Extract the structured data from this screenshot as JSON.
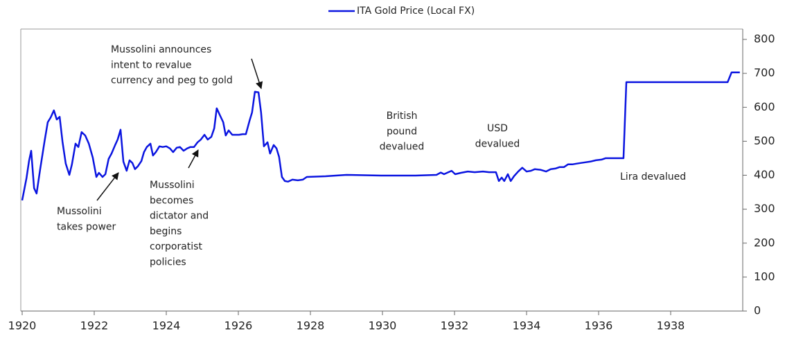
{
  "chart_data": {
    "type": "line",
    "series": [
      {
        "name": "ITA Gold Price (Local FX)",
        "color": "#0a14e0",
        "x": [
          1920.0,
          1920.12,
          1920.19,
          1920.25,
          1920.33,
          1920.4,
          1920.5,
          1920.62,
          1920.71,
          1920.79,
          1920.88,
          1920.96,
          1921.04,
          1921.12,
          1921.21,
          1921.31,
          1921.38,
          1921.48,
          1921.56,
          1921.65,
          1921.75,
          1921.85,
          1921.96,
          1922.06,
          1922.13,
          1922.23,
          1922.31,
          1922.4,
          1922.48,
          1922.58,
          1922.65,
          1922.73,
          1922.81,
          1922.9,
          1922.98,
          1923.06,
          1923.13,
          1923.21,
          1923.31,
          1923.38,
          1923.46,
          1923.56,
          1923.63,
          1923.71,
          1923.81,
          1923.9,
          1924.0,
          1924.1,
          1924.19,
          1924.29,
          1924.38,
          1924.48,
          1924.58,
          1924.67,
          1924.77,
          1924.87,
          1924.96,
          1925.06,
          1925.15,
          1925.25,
          1925.33,
          1925.4,
          1925.5,
          1925.58,
          1925.65,
          1925.73,
          1925.83,
          1925.92,
          1926.02,
          1926.12,
          1926.21,
          1926.31,
          1926.38,
          1926.46,
          1926.56,
          1926.63,
          1926.71,
          1926.81,
          1926.88,
          1926.98,
          1927.06,
          1927.13,
          1927.21,
          1927.29,
          1927.38,
          1927.5,
          1927.65,
          1927.79,
          1927.9,
          1928.42,
          1929.0,
          1929.96,
          1930.92,
          1931.5,
          1931.62,
          1931.71,
          1931.81,
          1931.92,
          1932.02,
          1932.17,
          1932.37,
          1932.56,
          1932.79,
          1932.96,
          1933.15,
          1933.23,
          1933.31,
          1933.38,
          1933.48,
          1933.56,
          1933.65,
          1933.77,
          1933.88,
          1934.0,
          1934.12,
          1934.23,
          1934.38,
          1934.54,
          1934.67,
          1934.81,
          1934.92,
          1935.04,
          1935.15,
          1935.27,
          1935.38,
          1935.5,
          1935.63,
          1935.77,
          1935.92,
          1936.08,
          1936.19,
          1936.31,
          1936.46,
          1936.62,
          1936.69,
          1936.77,
          1937.85,
          1939.58,
          1939.69,
          1939.92
        ],
        "values": [
          326,
          391,
          442,
          472,
          362,
          346,
          418,
          499,
          556,
          570,
          591,
          564,
          572,
          499,
          434,
          401,
          432,
          493,
          483,
          527,
          517,
          493,
          452,
          395,
          407,
          395,
          403,
          448,
          464,
          489,
          505,
          534,
          440,
          413,
          444,
          436,
          418,
          426,
          442,
          468,
          483,
          493,
          458,
          468,
          485,
          483,
          485,
          479,
          468,
          481,
          483,
          472,
          479,
          483,
          483,
          497,
          505,
          519,
          505,
          513,
          538,
          597,
          574,
          556,
          517,
          532,
          519,
          519,
          519,
          521,
          521,
          560,
          585,
          646,
          644,
          585,
          485,
          497,
          464,
          489,
          479,
          454,
          395,
          383,
          381,
          387,
          385,
          387,
          395,
          397,
          401,
          399,
          399,
          401,
          408,
          403,
          408,
          413,
          403,
          407,
          411,
          409,
          411,
          409,
          409,
          383,
          393,
          383,
          403,
          383,
          397,
          411,
          422,
          411,
          413,
          418,
          416,
          411,
          418,
          420,
          424,
          424,
          432,
          432,
          434,
          436,
          438,
          440,
          444,
          446,
          450,
          450,
          450,
          450,
          450,
          674,
          674,
          674,
          703,
          703
        ]
      }
    ],
    "xlim": [
      1920,
      1940
    ],
    "xticks": [
      1920,
      1922,
      1924,
      1926,
      1928,
      1930,
      1932,
      1934,
      1936,
      1938
    ],
    "ylim": [
      0,
      800
    ],
    "yticks": [
      0,
      100,
      200,
      300,
      400,
      500,
      600,
      700,
      800
    ],
    "annotations": [
      {
        "lines": [
          "Mussolini announces",
          "intent to revalue",
          "currency and peg to gold"
        ]
      },
      {
        "lines": [
          "British",
          "pound",
          "devalued"
        ]
      },
      {
        "lines": [
          "USD",
          "devalued"
        ]
      },
      {
        "lines": [
          "Lira devalued"
        ]
      },
      {
        "lines": [
          "Mussolini",
          "takes power"
        ]
      },
      {
        "lines": [
          "Mussolini",
          "becomes",
          "dictator and",
          "begins",
          "corporatist",
          "policies"
        ]
      }
    ]
  }
}
